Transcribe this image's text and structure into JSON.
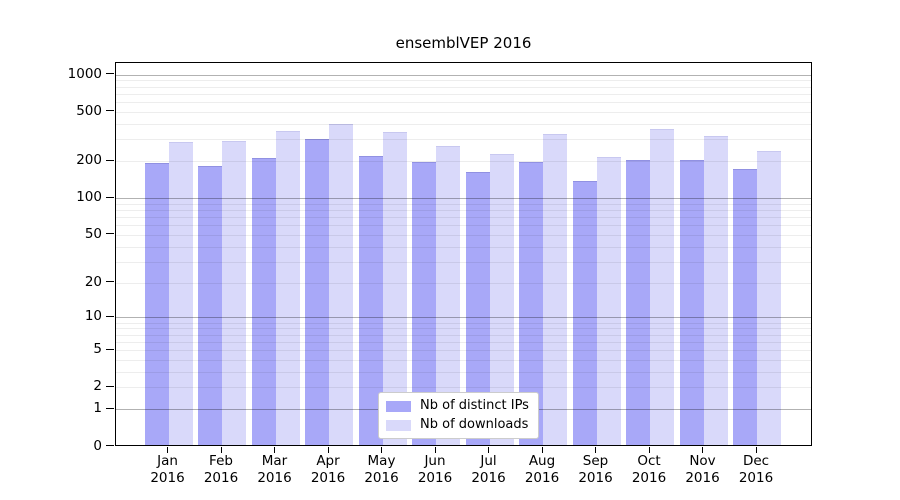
{
  "title": "ensemblVEP 2016",
  "colors": {
    "distinct_ips": "#a8a8f8",
    "distinct_ips_edge": "#9191e2",
    "downloads": "#d9d9fa",
    "downloads_edge": "#c8c8f0",
    "major_grid": "rgba(0,0,0,0.30)",
    "minor_grid": "rgba(0,0,0,0.07)"
  },
  "legend": {
    "items": [
      {
        "label": "Nb of distinct IPs",
        "series": "distinct_ips"
      },
      {
        "label": "Nb of downloads",
        "series": "downloads"
      }
    ]
  },
  "chart_data": {
    "type": "bar",
    "title": "ensemblVEP 2016",
    "categories": [
      "Jan 2016",
      "Feb 2016",
      "Mar 2016",
      "Apr 2016",
      "May 2016",
      "Jun 2016",
      "Jul 2016",
      "Aug 2016",
      "Sep 2016",
      "Oct 2016",
      "Nov 2016",
      "Dec 2016"
    ],
    "series": [
      {
        "name": "Nb of distinct IPs",
        "color": "#a8a8f8",
        "values": [
          185,
          176,
          203,
          292,
          214,
          190,
          157,
          189,
          134,
          196,
          196,
          165
        ]
      },
      {
        "name": "Nb of downloads",
        "color": "#d9d9fa",
        "values": [
          273,
          283,
          340,
          386,
          331,
          258,
          222,
          320,
          207,
          354,
          308,
          235
        ]
      }
    ],
    "xlabel": "",
    "ylabel": "",
    "yscale": "log1p",
    "y_ticks": [
      0,
      1,
      2,
      5,
      10,
      20,
      50,
      100,
      200,
      500,
      1000
    ],
    "ylim": [
      0,
      1240
    ],
    "grid": "on",
    "grid_major_at": [
      1,
      10,
      100,
      1000
    ],
    "legend_position": "lower center"
  }
}
